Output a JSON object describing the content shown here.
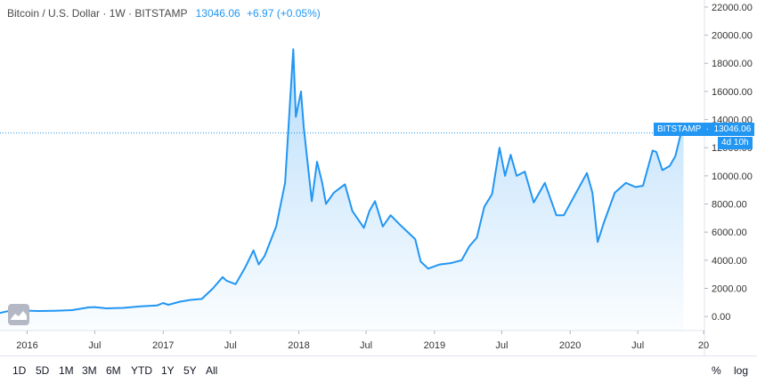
{
  "header": {
    "title": "Bitcoin / U.S. Dollar · 1W · BITSTAMP",
    "price": "13046.06",
    "change": "+6.97 (+0.05%)"
  },
  "price_tag": {
    "exchange": "BITSTAMP",
    "value": "13046.06",
    "countdown": "4d 10h"
  },
  "bottom": {
    "ranges": [
      "1D",
      "5D",
      "1M",
      "3M",
      "6M",
      "YTD",
      "1Y",
      "5Y",
      "All"
    ],
    "percent": "%",
    "log": "log"
  },
  "colors": {
    "line": "#2196f3",
    "text": "#4a4a4a",
    "axis_text": "#333333"
  },
  "logo_icon": "tradingview-badge-icon",
  "chart_data": {
    "type": "area",
    "title": "Bitcoin / U.S. Dollar · 1W · BITSTAMP",
    "xlabel": "",
    "ylabel": "",
    "ylim": [
      -1000,
      22500
    ],
    "xlim": [
      "2015-10-20",
      "2020-12-25"
    ],
    "x_ticks": [
      {
        "label": "2016",
        "date": "2016-01-01"
      },
      {
        "label": "Jul",
        "date": "2016-07-01"
      },
      {
        "label": "2017",
        "date": "2017-01-01"
      },
      {
        "label": "Jul",
        "date": "2017-07-01"
      },
      {
        "label": "2018",
        "date": "2018-01-01"
      },
      {
        "label": "Jul",
        "date": "2018-07-01"
      },
      {
        "label": "2019",
        "date": "2019-01-01"
      },
      {
        "label": "Jul",
        "date": "2019-07-01"
      },
      {
        "label": "2020",
        "date": "2020-01-01"
      },
      {
        "label": "Jul",
        "date": "2020-07-01"
      },
      {
        "label": "20",
        "date": "2020-12-25"
      }
    ],
    "y_ticks": [
      "0.00",
      "2000.00",
      "4000.00",
      "6000.00",
      "8000.00",
      "10000.00",
      "12000.00",
      "14000.00",
      "16000.00",
      "18000.00",
      "20000.00",
      "22000.00"
    ],
    "y_tick_values": [
      0,
      2000,
      4000,
      6000,
      8000,
      10000,
      12000,
      14000,
      16000,
      18000,
      20000,
      22000
    ],
    "last_price": 13046.06,
    "grid": false,
    "legend": "none",
    "series": [
      {
        "x": [
          "2015-10-20",
          "2015-11-10",
          "2015-12-01",
          "2015-12-22",
          "2016-02-01",
          "2016-03-15",
          "2016-05-01",
          "2016-06-15",
          "2016-07-01",
          "2016-08-01",
          "2016-09-15",
          "2016-11-01",
          "2016-12-15",
          "2017-01-01",
          "2017-01-15",
          "2017-02-15",
          "2017-03-15",
          "2017-04-15",
          "2017-05-15",
          "2017-06-10",
          "2017-06-20",
          "2017-07-15",
          "2017-08-10",
          "2017-09-01",
          "2017-09-15",
          "2017-10-01",
          "2017-11-01",
          "2017-11-25",
          "2017-12-17",
          "2017-12-24",
          "2018-01-07",
          "2018-01-14",
          "2018-02-05",
          "2018-02-19",
          "2018-03-05",
          "2018-03-15",
          "2018-04-05",
          "2018-05-05",
          "2018-05-25",
          "2018-06-25",
          "2018-07-10",
          "2018-07-25",
          "2018-08-15",
          "2018-09-05",
          "2018-10-01",
          "2018-11-10",
          "2018-11-25",
          "2018-12-15",
          "2019-01-15",
          "2019-02-15",
          "2019-03-15",
          "2019-04-05",
          "2019-04-25",
          "2019-05-15",
          "2019-06-05",
          "2019-06-25",
          "2019-07-10",
          "2019-07-25",
          "2019-08-10",
          "2019-09-01",
          "2019-09-25",
          "2019-10-25",
          "2019-11-25",
          "2019-12-15",
          "2020-01-15",
          "2020-02-15",
          "2020-03-01",
          "2020-03-15",
          "2020-04-01",
          "2020-04-30",
          "2020-05-30",
          "2020-06-25",
          "2020-07-15",
          "2020-08-10",
          "2020-08-20",
          "2020-09-05",
          "2020-09-25",
          "2020-10-10",
          "2020-10-25",
          "2020-11-01"
        ],
        "values": [
          250,
          380,
          450,
          420,
          390,
          410,
          450,
          650,
          670,
          580,
          610,
          720,
          780,
          960,
          830,
          1050,
          1180,
          1250,
          2000,
          2800,
          2550,
          2300,
          3500,
          4700,
          3700,
          4300,
          6400,
          9500,
          19000,
          14200,
          16000,
          13500,
          8200,
          11000,
          9500,
          8000,
          8800,
          9400,
          7500,
          6300,
          7500,
          8200,
          6400,
          7200,
          6500,
          5500,
          3900,
          3400,
          3700,
          3800,
          4000,
          5000,
          5600,
          7800,
          8700,
          12000,
          10000,
          11500,
          10000,
          10300,
          8100,
          9500,
          7200,
          7200,
          8700,
          10200,
          8800,
          5300,
          6700,
          8800,
          9500,
          9200,
          9300,
          11800,
          11700,
          10400,
          10700,
          11400,
          13000,
          13046
        ]
      }
    ]
  }
}
